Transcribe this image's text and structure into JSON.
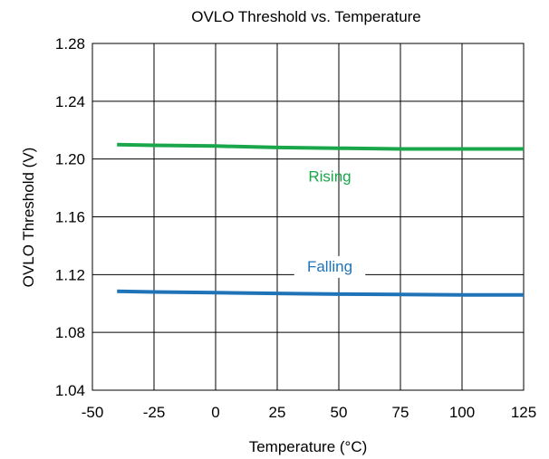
{
  "chart_data": {
    "type": "line",
    "title": "OVLO Threshold vs. Temperature",
    "xlabel": "Temperature (°C)",
    "ylabel": "OVLO Threshold (V)",
    "xlim": [
      -50,
      125
    ],
    "ylim": [
      1.04,
      1.28
    ],
    "xticks": [
      -50,
      -25,
      0,
      25,
      50,
      75,
      100,
      125
    ],
    "yticks": [
      1.04,
      1.08,
      1.12,
      1.16,
      1.2,
      1.24,
      1.28
    ],
    "xtick_labels": [
      "-50",
      "-25",
      "0",
      "25",
      "50",
      "75",
      "100",
      "125"
    ],
    "ytick_labels": [
      "1.04",
      "1.08",
      "1.12",
      "1.16",
      "1.20",
      "1.24",
      "1.28"
    ],
    "grid": true,
    "series": [
      {
        "name": "Rising",
        "color": "#1aa64b",
        "x": [
          -40,
          -25,
          0,
          25,
          50,
          75,
          100,
          125
        ],
        "values": [
          1.21,
          1.2095,
          1.209,
          1.208,
          1.2075,
          1.207,
          1.207,
          1.207
        ]
      },
      {
        "name": "Falling",
        "color": "#1f74b8",
        "x": [
          -40,
          -25,
          0,
          25,
          50,
          75,
          100,
          125
        ],
        "values": [
          1.1085,
          1.108,
          1.1075,
          1.107,
          1.1065,
          1.1063,
          1.106,
          1.106
        ]
      }
    ]
  }
}
